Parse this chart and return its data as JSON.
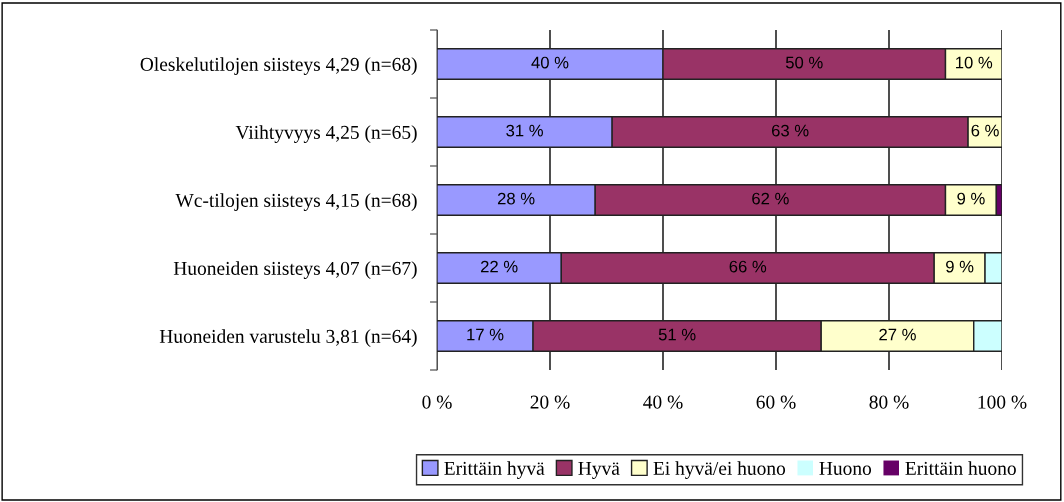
{
  "chart_data": {
    "type": "bar",
    "orientation": "horizontal",
    "stacked": true,
    "categories": [
      "Oleskelutilojen siisteys 4,29 (n=68)",
      "Viihtyvyys 4,25 (n=65)",
      "Wc-tilojen siisteys 4,15 (n=68)",
      "Huoneiden siisteys 4,07 (n=67)",
      "Huoneiden varustelu 3,81 (n=64)"
    ],
    "series": [
      {
        "name": "Erittäin hyvä",
        "color": "#9999ff",
        "values": [
          40,
          31,
          28,
          22,
          17
        ],
        "value_labels": [
          "40 %",
          "31 %",
          "28 %",
          "22 %",
          "17 %"
        ]
      },
      {
        "name": "Hyvä",
        "color": "#993366",
        "values": [
          50,
          63,
          62,
          66,
          51
        ],
        "value_labels": [
          "50 %",
          "63 %",
          "62 %",
          "66 %",
          "51 %"
        ]
      },
      {
        "name": "Ei hyvä/ei huono",
        "color": "#ffffcc",
        "values": [
          10,
          6,
          9,
          9,
          27
        ],
        "value_labels": [
          "10 %",
          "6 %",
          "9 %",
          "9 %",
          "27 %"
        ]
      },
      {
        "name": "Huono",
        "color": "#ccffff",
        "values": [
          0,
          0,
          0,
          3,
          5
        ],
        "value_labels": [
          null,
          null,
          null,
          null,
          null
        ]
      },
      {
        "name": "Erittäin huono",
        "color": "#660066",
        "values": [
          0,
          0,
          1,
          0,
          0
        ],
        "value_labels": [
          null,
          null,
          null,
          null,
          null
        ]
      }
    ],
    "xlim": [
      0,
      100
    ],
    "xticks": [
      {
        "value": 0,
        "label": "0 %"
      },
      {
        "value": 20,
        "label": "20 %"
      },
      {
        "value": 40,
        "label": "40 %"
      },
      {
        "value": 60,
        "label": "60 %"
      },
      {
        "value": 80,
        "label": "80 %"
      },
      {
        "value": 100,
        "label": "100 %"
      }
    ],
    "grid": "x",
    "legend": "bottom"
  }
}
